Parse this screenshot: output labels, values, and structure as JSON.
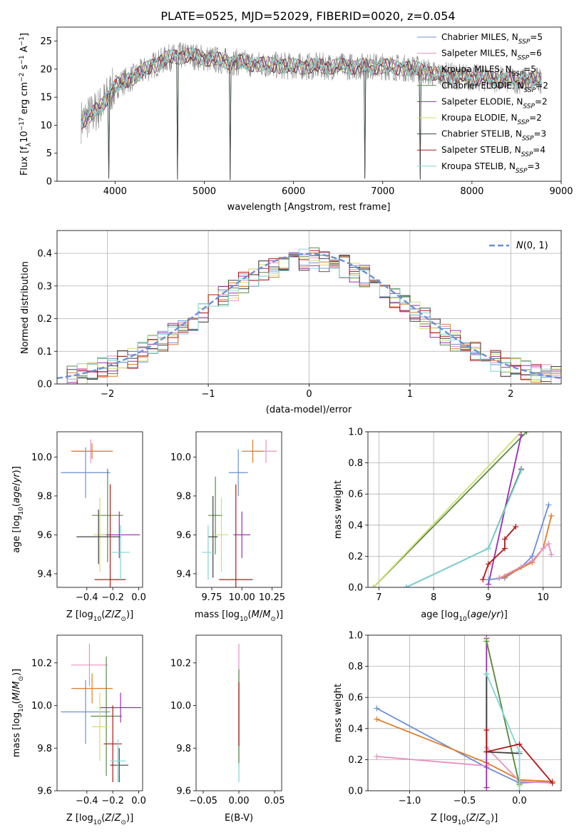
{
  "title": "PLATE=0525, MJD=52029, FIBERID=0020, z=0.054",
  "colors": {
    "Chabrier MILES": "#6a8fd8",
    "Salpeter MILES": "#e890c0",
    "Kroupa MILES": "#e07d28",
    "Chabrier ELODIE": "#5a8a4a",
    "Salpeter ELODIE": "#9b2ab0",
    "Kroupa ELODIE": "#cfe06a",
    "Chabrier STELIB": "#404040",
    "Salpeter STELIB": "#b01818",
    "Kroupa STELIB": "#7ed6d6"
  },
  "chart_data": [
    {
      "panel": "spectrum",
      "type": "line",
      "xlabel": "wavelength [Angstrom, rest frame]",
      "ylabel": "Flux [f_λ 10^-17 erg cm^-2 s^-1 A^-1]",
      "xlim": [
        3350,
        9000
      ],
      "ylim": [
        0,
        27.5
      ],
      "xticks": [
        4000,
        5000,
        6000,
        7000,
        8000,
        9000
      ],
      "yticks": [
        0,
        5,
        10,
        15,
        20,
        25
      ],
      "grid": false,
      "legend_placement": "top-right",
      "legend": [
        {
          "name": "Chabrier MILES",
          "label": "Chabrier MILES, N",
          "sub": "SSP",
          "suffix": "=5"
        },
        {
          "name": "Salpeter MILES",
          "label": "Salpeter MILES, N",
          "sub": "SSP",
          "suffix": "=6"
        },
        {
          "name": "Kroupa MILES",
          "label": "Kroupa MILES, N",
          "sub": "SSP",
          "suffix": "=5"
        },
        {
          "name": "Chabrier ELODIE",
          "label": "Chabrier ELODIE, N",
          "sub": "SSP",
          "suffix": "=2"
        },
        {
          "name": "Salpeter ELODIE",
          "label": "Salpeter ELODIE, N",
          "sub": "SSP",
          "suffix": "=2"
        },
        {
          "name": "Kroupa ELODIE",
          "label": "Kroupa ELODIE, N",
          "sub": "SSP",
          "suffix": "=2"
        },
        {
          "name": "Chabrier STELIB",
          "label": "Chabrier STELIB, N",
          "sub": "SSP",
          "suffix": "=3"
        },
        {
          "name": "Salpeter STELIB",
          "label": "Salpeter STELIB, N",
          "sub": "SSP",
          "suffix": "=4"
        },
        {
          "name": "Kroupa STELIB",
          "label": "Kroupa STELIB, N",
          "sub": "SSP",
          "suffix": "=3"
        }
      ],
      "continuum": [
        [
          3600,
          10.5
        ],
        [
          3750,
          12
        ],
        [
          3850,
          13.5
        ],
        [
          3950,
          16
        ],
        [
          4050,
          17.5
        ],
        [
          4200,
          18.5
        ],
        [
          4400,
          20.5
        ],
        [
          4600,
          22
        ],
        [
          4800,
          22.5
        ],
        [
          5000,
          22
        ],
        [
          5200,
          21.5
        ],
        [
          5500,
          21
        ],
        [
          6000,
          20.5
        ],
        [
          6500,
          20.5
        ],
        [
          7000,
          20.5
        ],
        [
          7400,
          20
        ],
        [
          7600,
          19
        ],
        [
          8000,
          18.5
        ],
        [
          8500,
          18
        ],
        [
          8700,
          18
        ]
      ],
      "model_range": [
        3620,
        8780
      ],
      "data_range": [
        3620,
        8780
      ],
      "dips": [
        [
          3930,
          0.5
        ],
        [
          4700,
          0.3
        ],
        [
          5290,
          0.2
        ],
        [
          6800,
          0.5
        ],
        [
          7420,
          0.3
        ]
      ]
    },
    {
      "panel": "residual_histogram",
      "type": "bar",
      "xlabel": "(data-model)/error",
      "ylabel": "Normed distribution",
      "xlim": [
        -2.5,
        2.5
      ],
      "ylim": [
        0,
        0.47
      ],
      "xticks": [
        -2,
        -1,
        0,
        1,
        2
      ],
      "yticks": [
        0,
        0.1,
        0.2,
        0.3,
        0.4
      ],
      "grid": true,
      "legend_placement": "top-right",
      "reference_curve": {
        "label": "N(0,1)",
        "mean": 0,
        "sigma": 1,
        "color": "#6a8fd8"
      },
      "bin_width": 0.1,
      "bin_start": -2.5
    },
    {
      "panel": "age_vs_Z",
      "type": "scatter",
      "xlabel": "Z [log10(Z/Z_sun)]",
      "ylabel": "age [log10(age/yr)]",
      "xlim": [
        -0.63,
        0.03
      ],
      "ylim": [
        9.33,
        10.13
      ],
      "xticks": [
        -0.4,
        -0.2,
        0.0
      ],
      "yticks": [
        9.4,
        9.6,
        9.8,
        10.0
      ],
      "grid": false,
      "points": [
        {
          "name": "Chabrier MILES",
          "x": -0.41,
          "y": 9.92,
          "xerr": 0.19,
          "yerr": 0.13
        },
        {
          "name": "Salpeter MILES",
          "x": -0.37,
          "y": 10.03,
          "xerr": 0.15,
          "yerr": 0.06
        },
        {
          "name": "Kroupa MILES",
          "x": -0.36,
          "y": 10.03,
          "xerr": 0.16,
          "yerr": 0.04
        },
        {
          "name": "Chabrier ELODIE",
          "x": -0.24,
          "y": 9.7,
          "xerr": 0.12,
          "yerr": 0.24
        },
        {
          "name": "Salpeter ELODIE",
          "x": -0.15,
          "y": 9.6,
          "xerr": 0.16,
          "yerr": 0.12
        },
        {
          "name": "Kroupa ELODIE",
          "x": -0.3,
          "y": 9.6,
          "xerr": 0.05,
          "yerr": 0.19
        },
        {
          "name": "Chabrier STELIB",
          "x": -0.31,
          "y": 9.59,
          "xerr": 0.17,
          "yerr": 0.14
        },
        {
          "name": "Salpeter STELIB",
          "x": -0.22,
          "y": 9.37,
          "xerr": 0.12,
          "yerr": 0.49
        },
        {
          "name": "Kroupa STELIB",
          "x": -0.14,
          "y": 9.51,
          "xerr": 0.07,
          "yerr": 0.14
        }
      ]
    },
    {
      "panel": "age_vs_mass",
      "type": "scatter",
      "xlabel": "mass [log10(M/M_sun)]",
      "ylabel": "",
      "xlim": [
        9.62,
        10.33
      ],
      "ylim": [
        9.33,
        10.13
      ],
      "xticks": [
        9.75,
        10.0,
        10.25
      ],
      "yticks": [
        9.4,
        9.6,
        9.8,
        10.0
      ],
      "grid": false,
      "points": [
        {
          "name": "Chabrier MILES",
          "x": 9.97,
          "y": 9.92,
          "xerr": 0.08,
          "yerr": 0.12
        },
        {
          "name": "Salpeter MILES",
          "x": 10.2,
          "y": 10.03,
          "xerr": 0.09,
          "yerr": 0.06
        },
        {
          "name": "Kroupa MILES",
          "x": 10.09,
          "y": 10.03,
          "xerr": 0.09,
          "yerr": 0.06
        },
        {
          "name": "Chabrier ELODIE",
          "x": 9.78,
          "y": 9.7,
          "xerr": 0.06,
          "yerr": 0.2
        },
        {
          "name": "Salpeter ELODIE",
          "x": 10.0,
          "y": 9.6,
          "xerr": 0.07,
          "yerr": 0.12
        },
        {
          "name": "Kroupa ELODIE",
          "x": 9.83,
          "y": 9.6,
          "xerr": 0.06,
          "yerr": 0.19
        },
        {
          "name": "Chabrier STELIB",
          "x": 9.76,
          "y": 9.59,
          "xerr": 0.04,
          "yerr": 0.21
        },
        {
          "name": "Salpeter STELIB",
          "x": 9.95,
          "y": 9.37,
          "xerr": 0.14,
          "yerr": 0.49
        },
        {
          "name": "Kroupa STELIB",
          "x": 9.72,
          "y": 9.51,
          "xerr": 0.05,
          "yerr": 0.14
        }
      ]
    },
    {
      "panel": "mass_weight_vs_age",
      "type": "line",
      "xlabel": "age [log10(age/yr)]",
      "ylabel": "mass weight",
      "xlim": [
        6.8,
        10.33
      ],
      "ylim": [
        0,
        1
      ],
      "xticks": [
        7,
        8,
        9,
        10
      ],
      "yticks": [
        0.0,
        0.2,
        0.4,
        0.6,
        0.8,
        1.0
      ],
      "grid": true,
      "series": [
        {
          "name": "Chabrier ELODIE",
          "x": [
            6.9,
            9.7
          ],
          "y": [
            0.0,
            1.0
          ]
        },
        {
          "name": "Kroupa ELODIE",
          "x": [
            6.9,
            9.6
          ],
          "y": [
            0.0,
            1.0
          ]
        },
        {
          "name": "Salpeter ELODIE",
          "x": [
            9.0,
            9.6
          ],
          "y": [
            0.02,
            0.98
          ]
        },
        {
          "name": "Chabrier STELIB",
          "x": [
            7.5,
            9.0,
            9.6
          ],
          "y": [
            0.0,
            0.25,
            0.76
          ]
        },
        {
          "name": "Kroupa STELIB",
          "x": [
            7.5,
            9.0,
            9.6
          ],
          "y": [
            0.0,
            0.25,
            0.75
          ]
        },
        {
          "name": "Salpeter STELIB",
          "x": [
            8.9,
            9.0,
            9.3,
            9.3,
            9.5
          ],
          "y": [
            0.05,
            0.15,
            0.25,
            0.31,
            0.39
          ]
        },
        {
          "name": "Chabrier MILES",
          "x": [
            9.0,
            9.3,
            9.6,
            9.8,
            10.1
          ],
          "y": [
            0.05,
            0.06,
            0.13,
            0.2,
            0.53
          ]
        },
        {
          "name": "Kroupa MILES",
          "x": [
            9.2,
            9.3,
            9.8,
            10.0,
            10.15
          ],
          "y": [
            0.06,
            0.07,
            0.16,
            0.25,
            0.46
          ]
        },
        {
          "name": "Salpeter MILES",
          "x": [
            9.2,
            9.8,
            10.0,
            10.1,
            10.15
          ],
          "y": [
            0.06,
            0.17,
            0.25,
            0.28,
            0.21
          ]
        }
      ]
    },
    {
      "panel": "mass_vs_Z",
      "type": "scatter",
      "xlabel": "Z [log10(Z/Z_sun)]",
      "ylabel": "mass [log10(M/M_sun)]",
      "xlim": [
        -0.63,
        0.03
      ],
      "ylim": [
        9.6,
        10.33
      ],
      "xticks": [
        -0.4,
        -0.2,
        0.0
      ],
      "yticks": [
        9.6,
        9.8,
        10.0,
        10.2
      ],
      "grid": false,
      "points": [
        {
          "name": "Chabrier MILES",
          "x": -0.41,
          "y": 9.97,
          "xerr": 0.19,
          "yerr": 0.15
        },
        {
          "name": "Salpeter MILES",
          "x": -0.38,
          "y": 10.19,
          "xerr": 0.14,
          "yerr": 0.1
        },
        {
          "name": "Kroupa MILES",
          "x": -0.36,
          "y": 10.08,
          "xerr": 0.16,
          "yerr": 0.07
        },
        {
          "name": "Chabrier ELODIE",
          "x": -0.25,
          "y": 9.95,
          "xerr": 0.12,
          "yerr": 0.28
        },
        {
          "name": "Salpeter ELODIE",
          "x": -0.14,
          "y": 9.99,
          "xerr": 0.16,
          "yerr": 0.07
        },
        {
          "name": "Kroupa ELODIE",
          "x": -0.3,
          "y": 9.9,
          "xerr": 0.06,
          "yerr": 0.16
        },
        {
          "name": "Chabrier STELIB",
          "x": -0.15,
          "y": 9.72,
          "xerr": 0.07,
          "yerr": 0.08
        },
        {
          "name": "Salpeter STELIB",
          "x": -0.2,
          "y": 9.82,
          "xerr": 0.07,
          "yerr": 0.18
        },
        {
          "name": "Kroupa STELIB",
          "x": -0.16,
          "y": 9.74,
          "xerr": 0.06,
          "yerr": 0.1
        }
      ]
    },
    {
      "panel": "mass_vs_ebv",
      "type": "scatter",
      "xlabel": "E(B-V)",
      "ylabel": "",
      "xlim": [
        -0.06,
        0.06
      ],
      "ylim": [
        9.6,
        10.33
      ],
      "xticks": [
        -0.05,
        0.0,
        0.05
      ],
      "yticks": [
        9.6,
        9.8,
        10.0,
        10.2
      ],
      "grid": false,
      "points": [
        {
          "name": "Salpeter MILES",
          "x": 0.0,
          "y": 10.0,
          "xerr": 0.0,
          "yerr": 0.29
        },
        {
          "name": "Kroupa STELIB",
          "x": 0.0,
          "y": 9.9,
          "xerr": 0.0,
          "yerr": 0.26
        },
        {
          "name": "Chabrier ELODIE",
          "x": 0.0,
          "y": 9.95,
          "xerr": 0.0,
          "yerr": 0.22
        },
        {
          "name": "Salpeter STELIB",
          "x": 0.0,
          "y": 9.96,
          "xerr": 0.0,
          "yerr": 0.15
        }
      ]
    },
    {
      "panel": "mass_weight_vs_Z",
      "type": "line",
      "xlabel": "Z [log10(Z/Z_sun)]",
      "ylabel": "mass weight",
      "xlim": [
        -1.38,
        0.38
      ],
      "ylim": [
        0,
        1
      ],
      "xticks": [
        -1.0,
        -0.5,
        0.0
      ],
      "yticks": [
        0.0,
        0.2,
        0.4,
        0.6,
        0.8,
        1.0
      ],
      "grid": true,
      "series": [
        {
          "name": "Chabrier MILES",
          "x": [
            -1.3,
            -0.3,
            0.0,
            0.3
          ],
          "y": [
            0.53,
            0.15,
            0.05,
            0.06
          ]
        },
        {
          "name": "Kroupa MILES",
          "x": [
            -1.3,
            -0.3,
            0.0,
            0.3
          ],
          "y": [
            0.46,
            0.18,
            0.07,
            0.06
          ]
        },
        {
          "name": "Salpeter MILES",
          "x": [
            -1.3,
            -0.3,
            -0.3,
            0.0,
            0.3
          ],
          "y": [
            0.22,
            0.16,
            0.28,
            0.06,
            0.05
          ]
        },
        {
          "name": "Salpeter ELODIE",
          "x": [
            -0.3,
            -0.3
          ],
          "y": [
            0.02,
            0.98
          ]
        },
        {
          "name": "Kroupa ELODIE",
          "x": [
            -0.3,
            0.0
          ],
          "y": [
            0.97,
            0.03
          ]
        },
        {
          "name": "Chabrier ELODIE",
          "x": [
            -0.3,
            0.0
          ],
          "y": [
            0.96,
            0.04
          ]
        },
        {
          "name": "Chabrier STELIB",
          "x": [
            -0.3,
            -0.3,
            0.0
          ],
          "y": [
            0.75,
            0.25,
            0.24
          ]
        },
        {
          "name": "Kroupa STELIB",
          "x": [
            -0.3,
            0.0,
            0.0
          ],
          "y": [
            0.75,
            0.25,
            0.0
          ]
        },
        {
          "name": "Salpeter STELIB",
          "x": [
            -0.3,
            -0.3,
            0.0,
            0.3
          ],
          "y": [
            0.39,
            0.25,
            0.3,
            0.05
          ]
        }
      ]
    }
  ]
}
